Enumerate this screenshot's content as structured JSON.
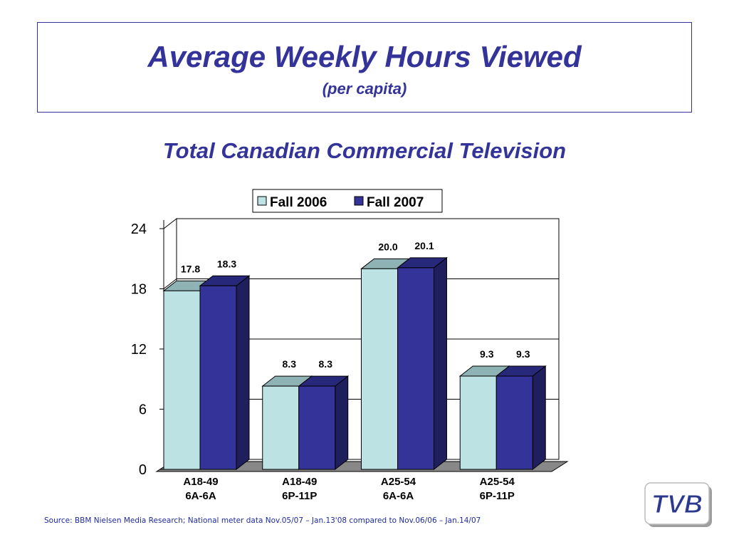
{
  "header": {
    "title": "Average Weekly Hours Viewed",
    "subtitle": "(per capita)"
  },
  "chart_data": {
    "type": "bar",
    "title": "Total Canadian Commercial Television",
    "categories": [
      [
        "A18-49",
        "6A-6A"
      ],
      [
        "A18-49",
        "6P-11P"
      ],
      [
        "A25-54",
        "6A-6A"
      ],
      [
        "A25-54",
        "6P-11P"
      ]
    ],
    "series": [
      {
        "name": "Fall 2006",
        "values": [
          17.8,
          8.3,
          20.0,
          9.3
        ],
        "labels": [
          "17.8",
          "8.3",
          "20.0",
          "9.3"
        ],
        "color": "#bde2e4"
      },
      {
        "name": "Fall 2007",
        "values": [
          18.3,
          8.3,
          20.1,
          9.3
        ],
        "labels": [
          "18.3",
          "8.3",
          "20.1",
          "9.3"
        ],
        "color": "#333399"
      }
    ],
    "ylim": [
      0,
      24
    ],
    "yticks": [
      "0",
      "6",
      "12",
      "18",
      "24"
    ],
    "grid": true,
    "legend": "top",
    "style": "3d"
  },
  "source_note": "Source: BBM Nielsen Media Research; National meter data Nov.05/07 – Jan.13'08 compared to Nov.06/06 – Jan.14/07",
  "logo": {
    "text": "TVB"
  }
}
